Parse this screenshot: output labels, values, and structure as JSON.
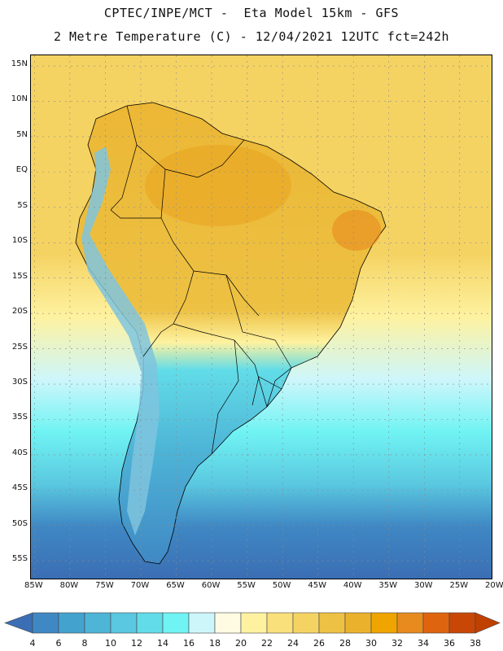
{
  "header": {
    "title_line1": "CPTEC/INPE/MCT -  Eta Model 15km - GFS",
    "title_line2": "2 Metre Temperature (C) - 12/04/2021 12UTC fct=242h"
  },
  "map": {
    "lat_labels": [
      "15N",
      "10N",
      "5N",
      "EQ",
      "5S",
      "10S",
      "15S",
      "20S",
      "25S",
      "30S",
      "35S",
      "40S",
      "45S",
      "50S",
      "55S"
    ],
    "lon_labels": [
      "85W",
      "80W",
      "75W",
      "70W",
      "65W",
      "60W",
      "55W",
      "50W",
      "45W",
      "40W",
      "35W",
      "30W",
      "25W",
      "20W"
    ],
    "extent": {
      "lon": [
        -85.5,
        -20.5
      ],
      "lat": [
        -57.5,
        16.5
      ]
    },
    "colors": {
      "ocean_north": "#f5d363",
      "land_north": "#ecb735",
      "land_hot": "#e9a825",
      "andes": "#7fc4de",
      "south_land": "#4eb5d7",
      "south_ocean": "#3e87c5",
      "border": "#000000"
    }
  },
  "colorbar": {
    "labels": [
      "4",
      "6",
      "8",
      "10",
      "12",
      "14",
      "16",
      "18",
      "20",
      "22",
      "24",
      "26",
      "28",
      "30",
      "32",
      "34",
      "36",
      "38"
    ],
    "colors": [
      "#3b6eb4",
      "#3f88c4",
      "#44a2cf",
      "#4eb5d7",
      "#5ac8e0",
      "#62dce8",
      "#70f3f3",
      "#cdf6fb",
      "#fffbe2",
      "#fef2a0",
      "#f9e07a",
      "#f5d363",
      "#edc143",
      "#eab22c",
      "#f0a400",
      "#e78b1e",
      "#df6410",
      "#c84707",
      "#c04000"
    ]
  }
}
